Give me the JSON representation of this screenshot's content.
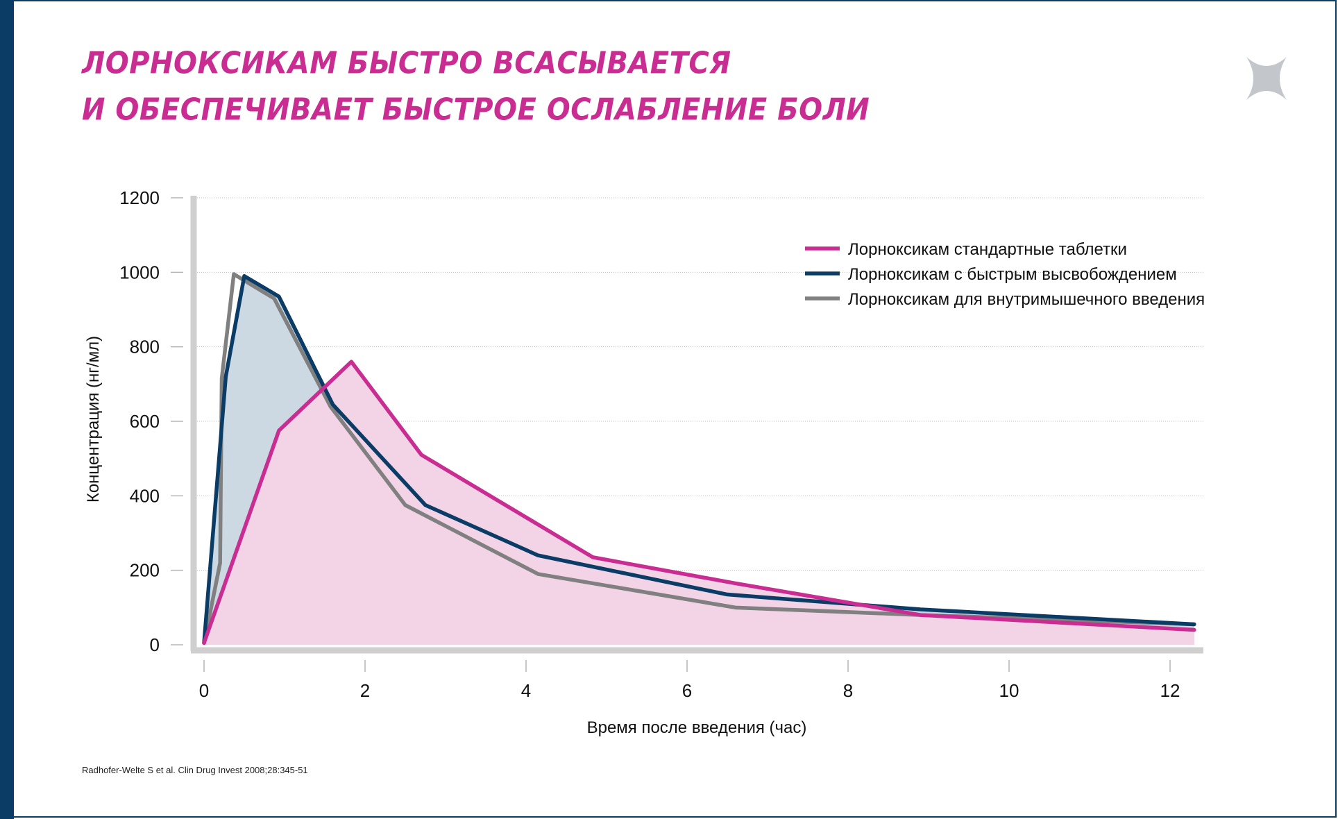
{
  "title": {
    "line1": "ЛОРНОКСИКАМ БЫСТРО ВСАСЫВАЕТСЯ",
    "line2": "И ОБЕСПЕЧИВАЕТ БЫСТРОЕ ОСЛАБЛЕНИЕ БОЛИ"
  },
  "close_icon": "close-x-icon",
  "citation": "Radhofer-Welte S et al. Clin Drug Invest 2008;28:345-51",
  "colors": {
    "accent": "#c92d92",
    "navy": "#0b3c66",
    "gray": "#808080",
    "pink_fill": "#f3d3e6",
    "blue_fill": "#c9d7e1"
  },
  "chart_data": {
    "type": "line",
    "xlabel": "Время после введения (час)",
    "ylabel": "Концентрация (нг/мл)",
    "xlim": [
      0,
      12.4
    ],
    "ylim": [
      0,
      1200
    ],
    "xticks": [
      0,
      2,
      4,
      6,
      8,
      10,
      12
    ],
    "yticks": [
      0,
      200,
      400,
      600,
      800,
      1000,
      1200
    ],
    "grid": "horizontal dotted",
    "legend_position": "top-right",
    "series": [
      {
        "name": "Лорноксикам стандартные таблетки",
        "color": "#c92d92",
        "fill": "pink",
        "x": [
          0,
          0.93,
          1.83,
          2.7,
          4.83,
          6.6,
          8.9,
          12.3
        ],
        "y": [
          5,
          575,
          760,
          510,
          235,
          165,
          80,
          40
        ]
      },
      {
        "name": "Лорноксикам с быстрым высвобождением",
        "color": "#0b3c66",
        "fill": "blue",
        "x": [
          0,
          0.27,
          0.5,
          0.93,
          1.6,
          2.75,
          4.15,
          6.5,
          8.9,
          12.3
        ],
        "y": [
          5,
          720,
          990,
          935,
          645,
          375,
          240,
          135,
          95,
          55
        ]
      },
      {
        "name": "Лорноксикам для внутримышечного введения",
        "color": "#808080",
        "fill": "none",
        "x": [
          0,
          0.2,
          0.22,
          0.37,
          0.87,
          1.57,
          2.5,
          4.15,
          6.6,
          8.9,
          12.3
        ],
        "y": [
          5,
          220,
          715,
          995,
          930,
          640,
          375,
          190,
          100,
          80,
          55
        ]
      }
    ]
  }
}
